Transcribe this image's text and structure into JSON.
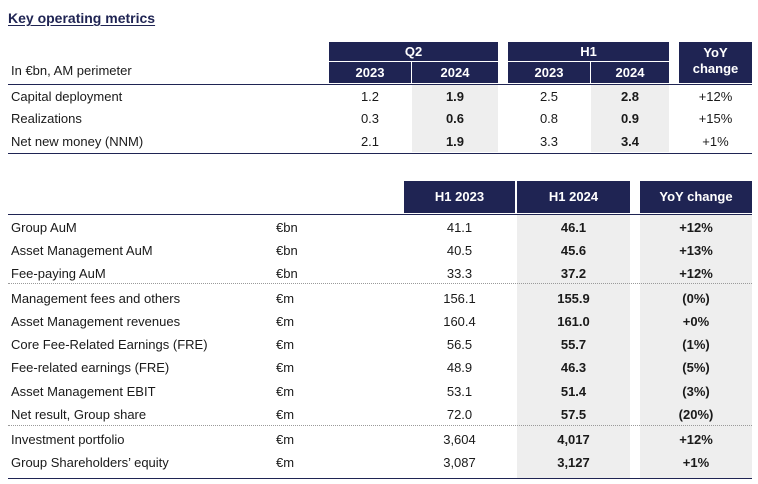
{
  "title": "Key operating metrics",
  "table1": {
    "unit_label": "In €bn, AM perimeter",
    "groups": [
      {
        "label": "Q2"
      },
      {
        "label": "H1"
      }
    ],
    "yoy_label": "YoY change",
    "cols": [
      "2023",
      "2024",
      "2023",
      "2024"
    ],
    "rows": [
      {
        "label": "Capital deployment",
        "values": [
          "1.2",
          "1.9",
          "2.5",
          "2.8"
        ],
        "yoy": "+12%"
      },
      {
        "label": "Realizations",
        "values": [
          "0.3",
          "0.6",
          "0.8",
          "0.9"
        ],
        "yoy": "+15%"
      },
      {
        "label": "Net new money (NNM)",
        "values": [
          "2.1",
          "1.9",
          "3.3",
          "3.4"
        ],
        "yoy": "+1%"
      }
    ]
  },
  "table2": {
    "headers": [
      "H1 2023",
      "H1 2024",
      "YoY change"
    ],
    "rows": [
      {
        "label": "Group AuM",
        "unit": "€bn",
        "h1_2023": "41.1",
        "h1_2024": "46.1",
        "yoy": "+12%"
      },
      {
        "label": "Asset Management AuM",
        "unit": "€bn",
        "h1_2023": "40.5",
        "h1_2024": "45.6",
        "yoy": "+13%"
      },
      {
        "label": "Fee-paying AuM",
        "unit": "€bn",
        "h1_2023": "33.3",
        "h1_2024": "37.2",
        "yoy": "+12%"
      },
      {
        "label": "Management fees and others",
        "unit": "€m",
        "h1_2023": "156.1",
        "h1_2024": "155.9",
        "yoy": "(0%)"
      },
      {
        "label": "Asset Management revenues",
        "unit": "€m",
        "h1_2023": "160.4",
        "h1_2024": "161.0",
        "yoy": "+0%"
      },
      {
        "label": "Core Fee-Related Earnings (FRE)",
        "unit": "€m",
        "h1_2023": "56.5",
        "h1_2024": "55.7",
        "yoy": "(1%)"
      },
      {
        "label": "Fee-related earnings (FRE)",
        "unit": "€m",
        "h1_2023": "48.9",
        "h1_2024": "46.3",
        "yoy": "(5%)"
      },
      {
        "label": "Asset Management EBIT",
        "unit": "€m",
        "h1_2023": "53.1",
        "h1_2024": "51.4",
        "yoy": "(3%)"
      },
      {
        "label": "Net result, Group share",
        "unit": "€m",
        "h1_2023": "72.0",
        "h1_2024": "57.5",
        "yoy": "(20%)"
      },
      {
        "label": "Investment portfolio",
        "unit": "€m",
        "h1_2023": "3,604",
        "h1_2024": "4,017",
        "yoy": "+12%"
      },
      {
        "label": "Group Shareholders’ equity",
        "unit": "€m",
        "h1_2023": "3,087",
        "h1_2024": "3,127",
        "yoy": "+1%"
      }
    ]
  },
  "colors": {
    "navy": "#1f2453",
    "shade": "#eeeeee"
  }
}
